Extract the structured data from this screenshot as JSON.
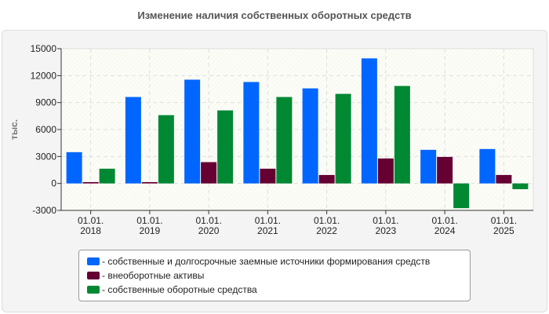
{
  "chart_data": {
    "type": "bar",
    "title": "Изменение наличия собственных оборотных средств",
    "ylabel": "тыс.",
    "xlabel": "",
    "ylim": [
      -3000,
      15000
    ],
    "yticks": [
      -3000,
      0,
      3000,
      6000,
      9000,
      12000,
      15000
    ],
    "categories": [
      [
        "01.01.",
        "2018"
      ],
      [
        "01.01.",
        "2019"
      ],
      [
        "01.01.",
        "2020"
      ],
      [
        "01.01.",
        "2021"
      ],
      [
        "01.01.",
        "2022"
      ],
      [
        "01.01.",
        "2023"
      ],
      [
        "01.01.",
        "2024"
      ],
      [
        "01.01.",
        "2025"
      ]
    ],
    "series": [
      {
        "name": "- собственные и долгосрочные заемные источники формирования средств",
        "color": "#0066ff",
        "values": [
          3480,
          9620,
          11550,
          11290,
          10580,
          13920,
          3740,
          3830
        ]
      },
      {
        "name": "- внеоборотные активы",
        "color": "#660033",
        "values": [
          150,
          150,
          2370,
          1640,
          940,
          2780,
          2950,
          940
        ]
      },
      {
        "name": "- собственные оборотные средства",
        "color": "#008833",
        "values": [
          1640,
          7600,
          8130,
          9620,
          9970,
          10850,
          -2750,
          -640
        ]
      }
    ],
    "grid": true,
    "legend_position": "bottom"
  }
}
